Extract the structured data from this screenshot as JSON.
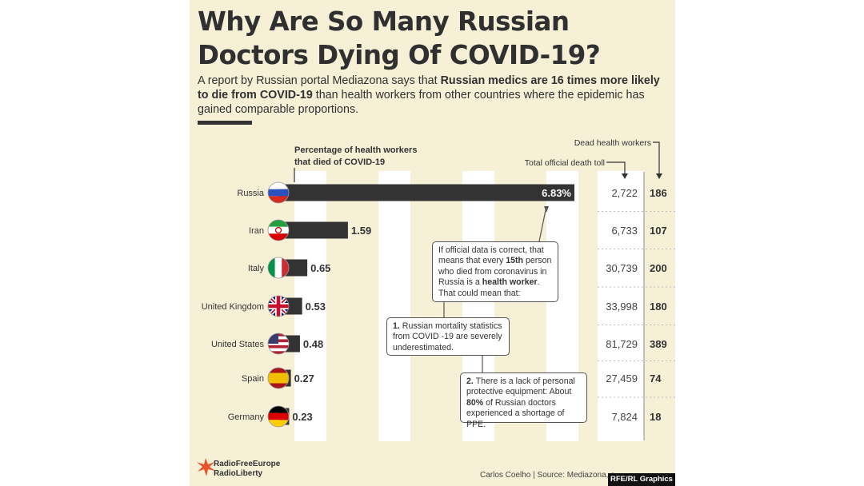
{
  "header": {
    "title_line1": "Why Are So Many Russian",
    "title_line2": "Doctors Dying Of COVID-19?",
    "subtitle_part1": "A report by Russian portal Mediazona says that ",
    "subtitle_bold": "Russian medics are 16 times more likely to die from COVID-19",
    "subtitle_part2": " than health workers from other countries where the epidemic has gained comparable proportions."
  },
  "chart_data": {
    "type": "bar",
    "title": "Percentage of health workers that died of COVID-19",
    "title_line1": "Percentage of health workers",
    "title_line2": "that died of COVID-19",
    "categories": [
      "Russia",
      "Iran",
      "Italy",
      "United Kingdom",
      "United States",
      "Spain",
      "Germany"
    ],
    "values": [
      6.83,
      1.59,
      0.65,
      0.53,
      0.48,
      0.27,
      0.23
    ],
    "value_labels": [
      "6.83%",
      "1.59",
      "0.65",
      "0.53",
      "0.48",
      "0.27",
      "0.23"
    ],
    "flags": [
      "russia",
      "iran",
      "italy",
      "uk",
      "usa",
      "spain",
      "germany"
    ],
    "total_deaths_label": "Total official death toll",
    "dead_workers_label": "Dead health workers",
    "total_deaths": [
      "2,722",
      "6,733",
      "30,739",
      "33,998",
      "81,729",
      "27,459",
      "7,824"
    ],
    "dead_health_workers": [
      "186",
      "107",
      "200",
      "180",
      "389",
      "74",
      "18"
    ],
    "bar_color": "#333333",
    "background_color": "#f6f0d7"
  },
  "callouts": {
    "main": {
      "t1": "If official data is correct, that means that every ",
      "b1": "15th",
      "t2": " person who died from coronavirus in Russia is a ",
      "b2": "health worker",
      "t3": ". That could mean that:"
    },
    "one": {
      "num": "1.",
      "text": " Russian mortality statistics from COVID -19 are severely underestimated."
    },
    "two": {
      "num": "2.",
      "t1": " There is a lack of personal protective equipment: About ",
      "b1": "80%",
      "t2": " of Russian doctors experienced a shortage of PPE."
    }
  },
  "footer": {
    "logo_line1": "RadioFreeEurope",
    "logo_line2": "RadioLiberty",
    "credit": "Carlos Coelho | Source: Mediazona, a",
    "badge": "RFE/RL Graphics"
  }
}
